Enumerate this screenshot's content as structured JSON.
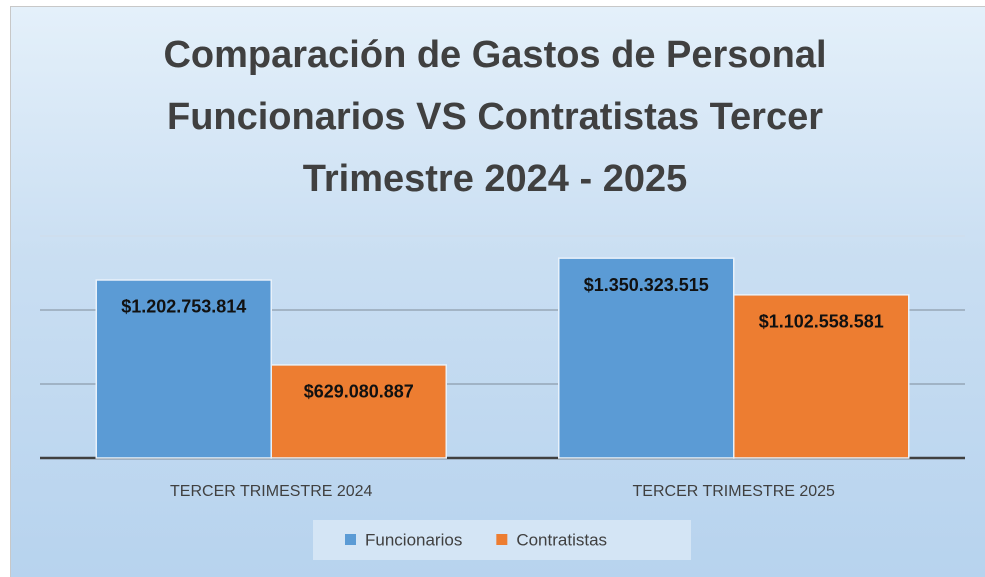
{
  "chart_data": {
    "type": "bar",
    "title": "Comparación de Gastos de Personal Funcionarios VS Contratistas Tercer Trimestre 2024 - 2025",
    "categories": [
      "TERCER TRIMESTRE 2024",
      "TERCER TRIMESTRE 2025"
    ],
    "series": [
      {
        "name": "Funcionarios",
        "color": "#5b9bd5",
        "values": [
          1202753814,
          1350323515
        ],
        "value_labels": [
          "$1.202.753.814",
          "$1.350.323.515"
        ]
      },
      {
        "name": "Contratistas",
        "color": "#ed7d31",
        "values": [
          629080887,
          1102558581
        ],
        "value_labels": [
          "$629.080.887",
          "$1.102.558.581"
        ]
      }
    ],
    "ylim": [
      0,
      1500000000
    ],
    "yticks": [
      0,
      500000000,
      1000000000,
      1500000000
    ],
    "grid": true,
    "legend": "bottom"
  }
}
